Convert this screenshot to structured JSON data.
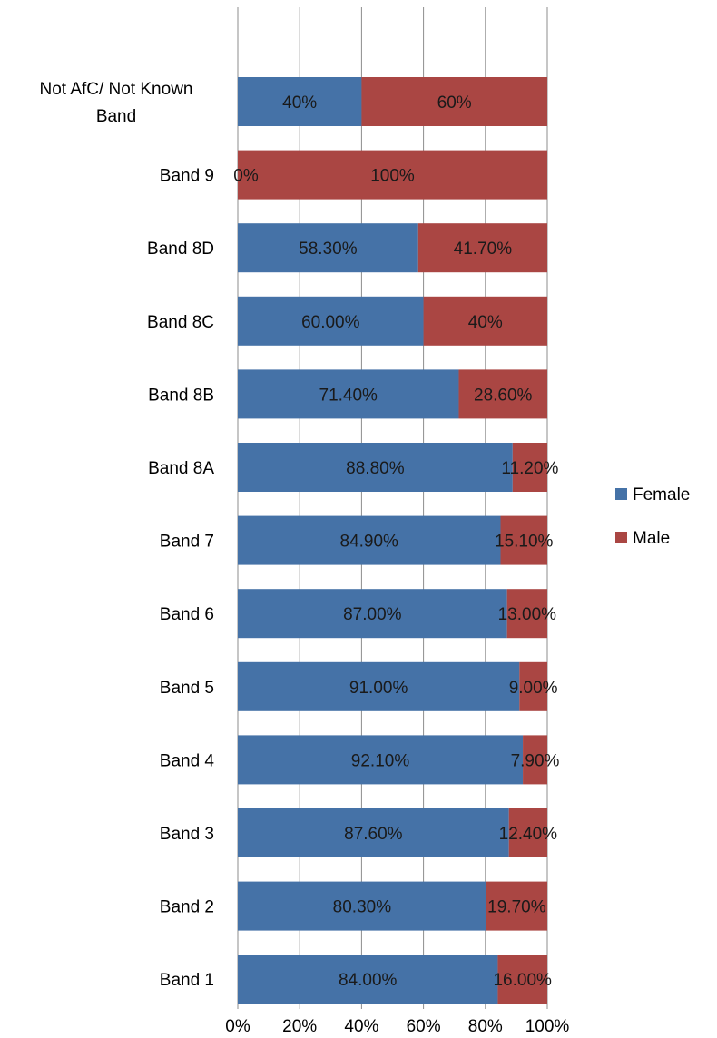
{
  "chart_data": {
    "type": "bar",
    "orientation": "horizontal",
    "stacked": "percent",
    "categories": [
      "Not AfC/ Not Known Band",
      "Band 9",
      "Band 8D",
      "Band 8C",
      "Band 8B",
      "Band 8A",
      "Band 7",
      "Band 6",
      "Band 5",
      "Band 4",
      "Band 3",
      "Band 2",
      "Band 1"
    ],
    "category_lines": [
      [
        "Not AfC/ Not Known",
        "Band"
      ],
      [
        "Band 9"
      ],
      [
        "Band 8D"
      ],
      [
        "Band 8C"
      ],
      [
        "Band 8B"
      ],
      [
        "Band 8A"
      ],
      [
        "Band 7"
      ],
      [
        "Band 6"
      ],
      [
        "Band 5"
      ],
      [
        "Band 4"
      ],
      [
        "Band 3"
      ],
      [
        "Band 2"
      ],
      [
        "Band 1"
      ]
    ],
    "series": [
      {
        "name": "Female",
        "color": "#4572A7",
        "values": [
          40,
          0,
          58.3,
          60.0,
          71.4,
          88.8,
          84.9,
          87.0,
          91.0,
          92.1,
          87.6,
          80.3,
          84.0
        ],
        "labels": [
          "40%",
          "0%",
          "58.30%",
          "60.00%",
          "71.40%",
          "88.80%",
          "84.90%",
          "87.00%",
          "91.00%",
          "92.10%",
          "87.60%",
          "80.30%",
          "84.00%"
        ]
      },
      {
        "name": "Male",
        "color": "#AA4643",
        "values": [
          60,
          100,
          41.7,
          40,
          28.6,
          11.2,
          15.1,
          13.0,
          9.0,
          7.9,
          12.4,
          19.7,
          16.0
        ],
        "labels": [
          "60%",
          "100%",
          "41.70%",
          "40%",
          "28.60%",
          "11.20%",
          "15.10%",
          "13.00%",
          "9.00%",
          "7.90%",
          "12.40%",
          "19.70%",
          "16.00%"
        ]
      }
    ],
    "xlim": [
      0,
      100
    ],
    "x_ticks": [
      "0%",
      "20%",
      "40%",
      "60%",
      "80%",
      "100%"
    ],
    "grid": true,
    "legend_position": "right",
    "title": "",
    "xlabel": "",
    "ylabel": ""
  }
}
